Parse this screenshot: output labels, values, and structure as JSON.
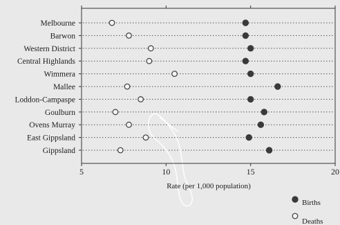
{
  "chart_data": {
    "type": "scatter",
    "title": "",
    "xlabel": "Rate (per 1,000 population)",
    "ylabel": "",
    "xlim": [
      5,
      20
    ],
    "xticks": [
      5,
      10,
      15,
      20
    ],
    "grid": false,
    "legend_position": "bottom-right",
    "categories": [
      "Melbourne",
      "Barwon",
      "Western District",
      "Central Highlands",
      "Wimmera",
      "Mallee",
      "Loddon-Campaspe",
      "Goulburn",
      "Ovens Murray",
      "East Gippsland",
      "Gippsland"
    ],
    "series": [
      {
        "name": "Births",
        "marker": "filled-circle",
        "color": "#3a3a3a",
        "values": [
          14.7,
          14.7,
          15.0,
          14.7,
          15.0,
          16.6,
          15.0,
          15.8,
          15.6,
          14.9,
          16.1
        ]
      },
      {
        "name": "Deaths",
        "marker": "open-circle",
        "color": "#3a3a3a",
        "values": [
          6.8,
          7.8,
          9.1,
          9.0,
          10.5,
          7.7,
          8.5,
          7.0,
          7.8,
          8.8,
          7.3
        ]
      }
    ]
  }
}
